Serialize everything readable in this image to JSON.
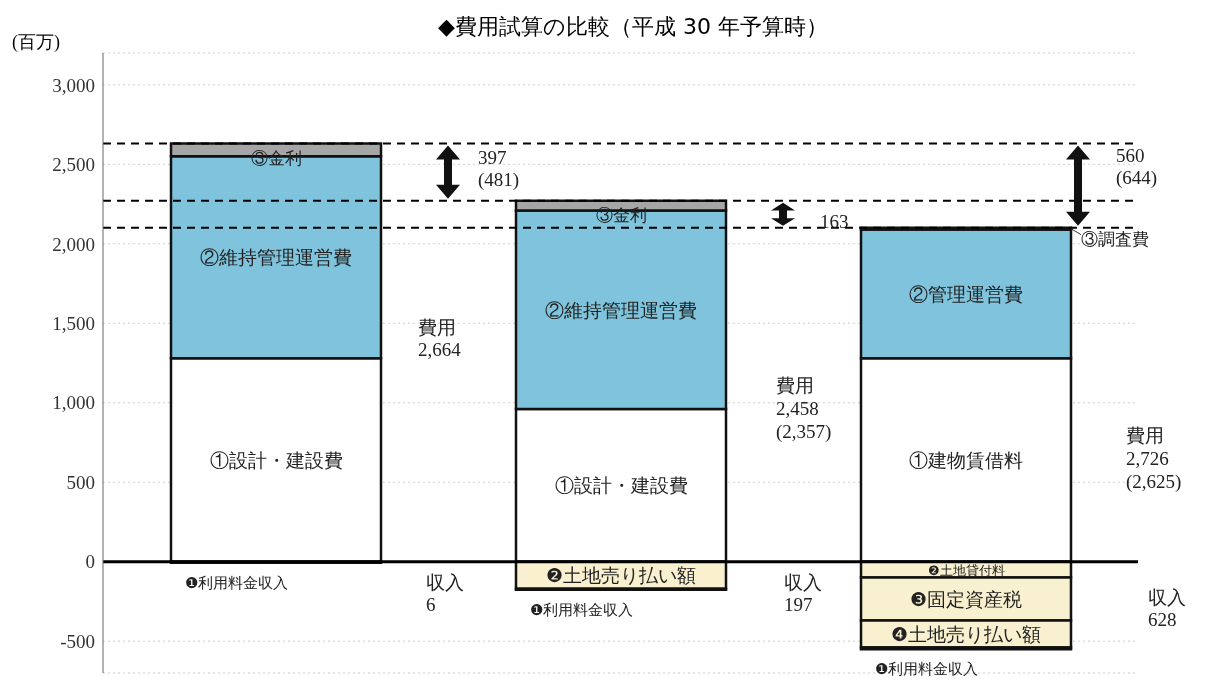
{
  "chart_data": {
    "type": "bar",
    "title": "◆費用試算の比較（平成 30 年予算時）",
    "ylabel": "(百万)",
    "categories": [
      null,
      null,
      null
    ],
    "stacked": true,
    "legend": false,
    "grid": "y",
    "tick_labels": "y",
    "ylim": [
      -700,
      3200
    ],
    "yticks": [
      -500,
      0,
      500,
      {
        "value": 1000,
        "label": "1,000"
      },
      {
        "value": 1500,
        "label": "1,500"
      },
      {
        "value": 2000,
        "label": "2,000"
      },
      {
        "value": 2500,
        "label": "2,500"
      },
      {
        "value": 3000,
        "label": "3,000"
      }
    ],
    "series": [
      {
        "color": "#ffffff",
        "values": [
          1280,
          960,
          1280
        ],
        "value_labels": [
          "①設計・建設費",
          "①設計・建設費",
          "①建物賃借料"
        ]
      },
      {
        "color": "#7fc4dc",
        "values": [
          1270,
          1250,
          810
        ],
        "value_labels": [
          "②維持管理運営費",
          "②維持管理運営費",
          "②管理運営費"
        ]
      },
      {
        "color": "#a6a6a6",
        "values": [
          80,
          60,
          10
        ],
        "value_labels": [
          "③金利",
          "③金利",
          "③調査費"
        ]
      },
      {
        "color": "#f9f0cf",
        "values": [
          null,
          -170,
          -100
        ],
        "value_labels": [
          null,
          "❷土地売り払い額",
          "❷土地貸付料"
        ]
      },
      {
        "color": "#f9f0cf",
        "values": [
          null,
          null,
          -270
        ],
        "value_labels": [
          null,
          null,
          "❸固定資産税"
        ]
      },
      {
        "color": "#f9f0cf",
        "values": [
          null,
          null,
          -170
        ],
        "value_labels": [
          null,
          null,
          "❹土地売り払い額"
        ]
      },
      {
        "color": "#ffffff",
        "values": [
          -6,
          -6,
          -10
        ],
        "value_labels": [
          "❶利用料金収入",
          "❶利用料金収入",
          "❶利用料金収入"
        ]
      }
    ],
    "ref_lines": [
      {
        "axis": "y",
        "value": 0,
        "color": "#000000",
        "line_style": "solid"
      },
      {
        "axis": "y",
        "value": 2630,
        "color": "#000000",
        "line_style": "dashed"
      },
      {
        "axis": "y",
        "value": 2270,
        "color": "#000000",
        "line_style": "dashed"
      },
      {
        "axis": "y",
        "value": 2100,
        "color": "#000000",
        "line_style": "dashed"
      }
    ],
    "annotations": [
      "397\n(481)",
      "163",
      "560\n(644)",
      "費用\n2,664",
      "費用\n2,458\n(2,357)",
      "費用\n2,726\n(2,625)",
      "収入\n6",
      "収入\n197",
      "収入\n628"
    ]
  }
}
